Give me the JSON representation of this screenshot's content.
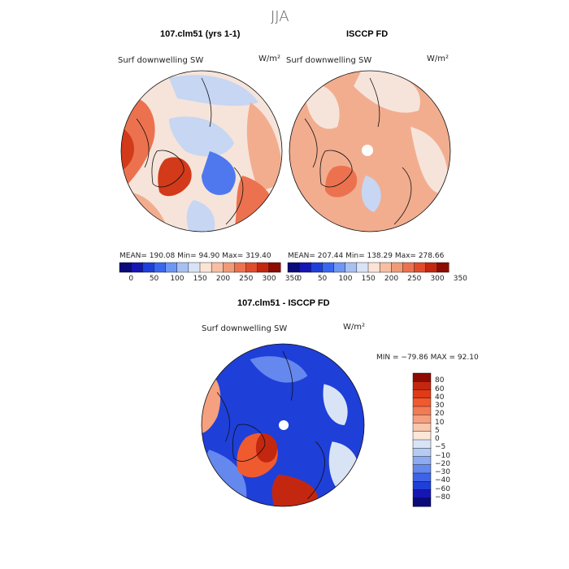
{
  "figure": {
    "title": "JJA"
  },
  "panels": [
    {
      "title": "107.clm51 (yrs 1-1)",
      "variable": "Surf downwelling SW",
      "units": "W/m²",
      "stats": {
        "mean": "190.08",
        "min": "94.90",
        "max": "319.40"
      },
      "stats_text": "MEAN= 190.08    Min=  94.90    Max= 319.40"
    },
    {
      "title": "ISCCP FD",
      "variable": "Surf downwelling SW",
      "units": "W/m²",
      "stats": {
        "mean": "207.44",
        "min": "138.29",
        "max": "278.66"
      },
      "stats_text": "MEAN= 207.44    Min= 138.29    Max= 278.66"
    },
    {
      "title": "107.clm51 - ISCCP FD",
      "variable": "Surf downwelling SW",
      "units": "W/m²",
      "stats": {
        "min": "-79.86",
        "max": "92.10"
      },
      "stats_text": "MIN = −79.86 MAX =  92.10"
    }
  ],
  "colorbars": {
    "absolute": {
      "labels": [
        "0",
        "50",
        "100",
        "150",
        "200",
        "250",
        "300",
        "350"
      ],
      "colors": [
        "#0a0a7a",
        "#1616b4",
        "#1f3fd9",
        "#3a66ef",
        "#6f96f2",
        "#a7c0f1",
        "#d8e4f6",
        "#fbe3d6",
        "#f6bfa4",
        "#f19a77",
        "#ec724f",
        "#e04b2b",
        "#c4270f",
        "#8d0b02"
      ]
    },
    "difference": {
      "labels": [
        "80",
        "60",
        "40",
        "30",
        "20",
        "10",
        "5",
        "0",
        "−5",
        "−10",
        "−20",
        "−30",
        "−40",
        "−60",
        "−80"
      ],
      "colors": [
        "#8d0b02",
        "#c4270f",
        "#e03a17",
        "#ef5a2f",
        "#f27b53",
        "#f5a07e",
        "#f9c7ad",
        "#fde6d8",
        "#d8e4f6",
        "#b6cbf2",
        "#8eaaf0",
        "#6588ee",
        "#3f63e6",
        "#1f3fd9",
        "#1616b4",
        "#0a0a7a"
      ]
    },
    "map_colors": {
      "deep_blue": "#1838d6",
      "mid_blue": "#4f78ee",
      "light_blue": "#c6d6f3",
      "pale": "#f6e4da",
      "light_red": "#f2ad8f",
      "mid_red": "#ec724f",
      "deep_red": "#d23a1a"
    }
  },
  "chart_data": [
    {
      "type": "heatmap",
      "projection": "north polar stereographic",
      "title": "107.clm51 (yrs 1-1)",
      "variable": "Surf downwelling SW",
      "units": "W/m²",
      "mean": 190.08,
      "min": 94.9,
      "max": 319.4,
      "colorbar_levels": [
        0,
        50,
        100,
        150,
        200,
        250,
        300,
        350
      ]
    },
    {
      "type": "heatmap",
      "projection": "north polar stereographic",
      "title": "ISCCP FD",
      "variable": "Surf downwelling SW",
      "units": "W/m²",
      "mean": 207.44,
      "min": 138.29,
      "max": 278.66,
      "colorbar_levels": [
        0,
        50,
        100,
        150,
        200,
        250,
        300,
        350
      ]
    },
    {
      "type": "heatmap",
      "projection": "north polar stereographic",
      "title": "107.clm51 - ISCCP FD",
      "variable": "Surf downwelling SW",
      "units": "W/m²",
      "min": -79.86,
      "max": 92.1,
      "colorbar_levels": [
        -80,
        -60,
        -40,
        -30,
        -20,
        -10,
        -5,
        0,
        5,
        10,
        20,
        30,
        40,
        60,
        80
      ]
    }
  ]
}
